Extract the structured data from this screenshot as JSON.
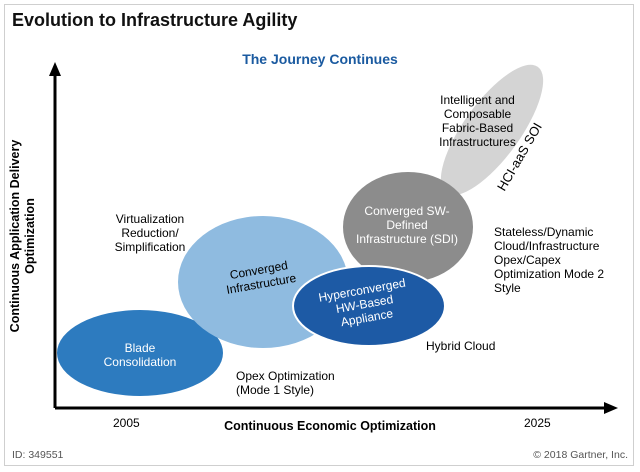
{
  "title": "Evolution to Infrastructure Agility",
  "subtitle": "The Journey Continues",
  "axes": {
    "y_label": "Continuous Application Delivery Optimization",
    "x_label": "Continuous Economic Optimization",
    "x_ticks": [
      "2005",
      "2025"
    ]
  },
  "stages": {
    "blade": "Blade Consolidation",
    "converged": "Converged Infrastructure",
    "hyperconverged": "Hyperconverged HW-Based Appliance",
    "sdi": "Converged SW-Defined Infrastructure (SDI)",
    "composable": "Intelligent and Composable Fabric-Based Infrastructures",
    "hci_aas": "HCI-aaS SOI"
  },
  "annotations": {
    "virtualization": "Virtualization Reduction/ Simplification",
    "opex": "Opex Optimization (Mode 1 Style)",
    "hybrid": "Hybrid Cloud",
    "stateless": "Stateless/Dynamic Cloud/Infrastructure Opex/Capex Optimization Mode 2 Style"
  },
  "colors": {
    "blade": "#2d7bbf",
    "converged": "#8fbbe0",
    "hyperconverged": "#1d5aa5",
    "sdi": "#8c8c8c",
    "composable": "#d4d4d4"
  },
  "footer": {
    "id": "ID: 349551",
    "copyright": "© 2018 Gartner, Inc."
  }
}
